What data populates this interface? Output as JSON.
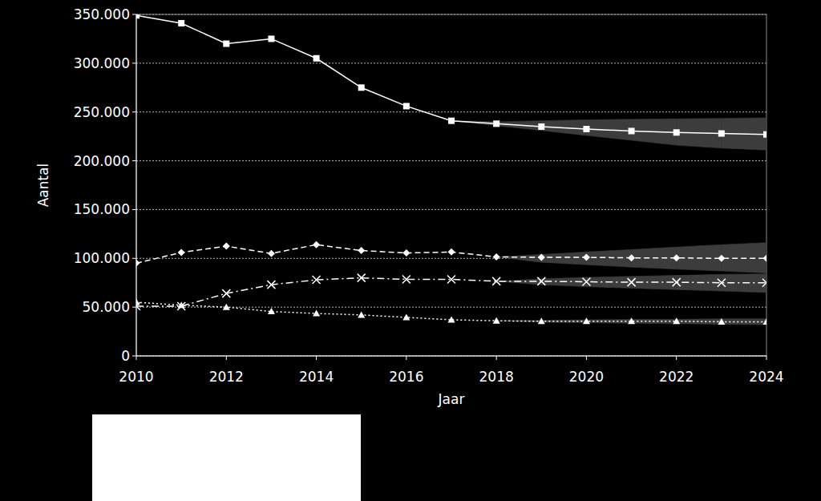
{
  "chart_data": {
    "type": "line",
    "x_label": "Jaar",
    "y_label": "Aantal",
    "x": [
      2010,
      2011,
      2012,
      2013,
      2014,
      2015,
      2016,
      2017,
      2018,
      2019,
      2020,
      2021,
      2022,
      2023,
      2024
    ],
    "xlim": [
      2010,
      2024
    ],
    "xticks": [
      2010,
      2012,
      2014,
      2016,
      2018,
      2020,
      2022,
      2024
    ],
    "ylim": [
      0,
      350000
    ],
    "yticks": [
      0,
      {
        "value": 50000,
        "label": "50.000"
      },
      {
        "value": 100000,
        "label": "100.000"
      },
      {
        "value": 150000,
        "label": "150.000"
      },
      {
        "value": 200000,
        "label": "200.000"
      },
      {
        "value": 250000,
        "label": "250.000"
      },
      {
        "value": 300000,
        "label": "300.000"
      },
      {
        "value": 350000,
        "label": "350.000"
      }
    ],
    "grid": true,
    "series": [
      {
        "color": "#ffffff",
        "marker": "square",
        "line_style": "solid",
        "values": [
          349000,
          341000,
          320000,
          325000,
          305000,
          275000,
          256000,
          241000,
          238000,
          235000,
          232500,
          230500,
          229000,
          228000,
          227000
        ],
        "lower": [
          null,
          null,
          null,
          null,
          null,
          null,
          null,
          241000,
          236000,
          231000,
          226000,
          221000,
          216000,
          213000,
          211000
        ],
        "upper": [
          null,
          null,
          null,
          null,
          null,
          null,
          null,
          241000,
          240000,
          241000,
          242000,
          242500,
          243000,
          243500,
          244000
        ]
      },
      {
        "color": "#ffffff",
        "marker": "diamond",
        "line_style": "dashed",
        "values": [
          95000,
          106000,
          112500,
          105000,
          114000,
          108000,
          105500,
          106500,
          101500,
          101000,
          101000,
          100500,
          100500,
          100000,
          100000
        ],
        "lower": [
          null,
          null,
          null,
          null,
          null,
          null,
          null,
          null,
          101500,
          96000,
          93500,
          91000,
          89000,
          87000,
          85000
        ],
        "upper": [
          null,
          null,
          null,
          null,
          null,
          null,
          null,
          null,
          101500,
          104000,
          106500,
          109000,
          111500,
          114000,
          116000
        ]
      },
      {
        "color": "#ffffff",
        "marker": "x",
        "line_style": "dashdot",
        "values": [
          51000,
          51000,
          64000,
          73000,
          78000,
          80000,
          78500,
          78500,
          76500,
          76500,
          76000,
          75500,
          75500,
          75000,
          75000
        ],
        "lower": [
          null,
          null,
          null,
          null,
          null,
          null,
          null,
          null,
          76500,
          73000,
          71000,
          69500,
          68000,
          66500,
          65000
        ],
        "upper": [
          null,
          null,
          null,
          null,
          null,
          null,
          null,
          null,
          76500,
          79000,
          80500,
          81500,
          82500,
          83500,
          84000
        ]
      },
      {
        "color": "#ffffff",
        "marker": "triangle",
        "line_style": "dotted",
        "values": [
          55000,
          52000,
          50000,
          45500,
          43500,
          42000,
          39500,
          37000,
          36000,
          35500,
          35500,
          35500,
          35500,
          35000,
          35000
        ],
        "lower": [
          null,
          null,
          null,
          null,
          null,
          null,
          null,
          null,
          36000,
          34500,
          34000,
          33500,
          33000,
          32500,
          32000
        ],
        "upper": [
          null,
          null,
          null,
          null,
          null,
          null,
          null,
          null,
          36000,
          36500,
          37000,
          37500,
          37500,
          38000,
          38000
        ]
      }
    ]
  }
}
